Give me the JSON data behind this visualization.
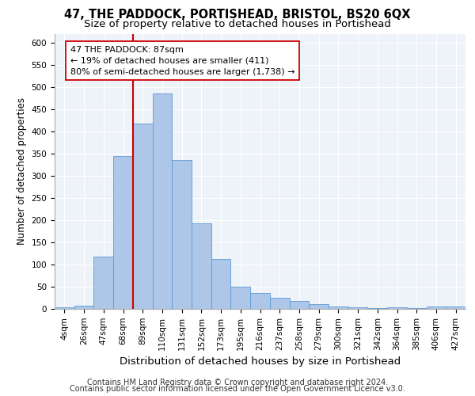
{
  "title": "47, THE PADDOCK, PORTISHEAD, BRISTOL, BS20 6QX",
  "subtitle": "Size of property relative to detached houses in Portishead",
  "xlabel": "Distribution of detached houses by size in Portishead",
  "ylabel": "Number of detached properties",
  "categories": [
    "4sqm",
    "26sqm",
    "47sqm",
    "68sqm",
    "89sqm",
    "110sqm",
    "131sqm",
    "152sqm",
    "173sqm",
    "195sqm",
    "216sqm",
    "237sqm",
    "258sqm",
    "279sqm",
    "300sqm",
    "321sqm",
    "342sqm",
    "364sqm",
    "385sqm",
    "406sqm",
    "427sqm"
  ],
  "values": [
    4,
    8,
    118,
    345,
    418,
    486,
    335,
    193,
    112,
    50,
    35,
    25,
    18,
    10,
    5,
    3,
    2,
    4,
    2,
    5,
    6
  ],
  "bar_color": "#aec6e8",
  "bar_edge_color": "#5b9bd5",
  "vline_index": 4,
  "vline_color": "#cc0000",
  "annotation_text": "47 THE PADDOCK: 87sqm\n← 19% of detached houses are smaller (411)\n80% of semi-detached houses are larger (1,738) →",
  "annotation_box_color": "#ffffff",
  "annotation_box_edge": "#cc0000",
  "ylim": [
    0,
    620
  ],
  "yticks": [
    0,
    50,
    100,
    150,
    200,
    250,
    300,
    350,
    400,
    450,
    500,
    550,
    600
  ],
  "footer_line1": "Contains HM Land Registry data © Crown copyright and database right 2024.",
  "footer_line2": "Contains public sector information licensed under the Open Government Licence v3.0.",
  "bg_color": "#eef2f9",
  "title_fontsize": 10.5,
  "subtitle_fontsize": 9.5,
  "xlabel_fontsize": 9.5,
  "ylabel_fontsize": 8.5,
  "tick_fontsize": 7.5,
  "footer_fontsize": 7.0,
  "annot_fontsize": 8.0
}
